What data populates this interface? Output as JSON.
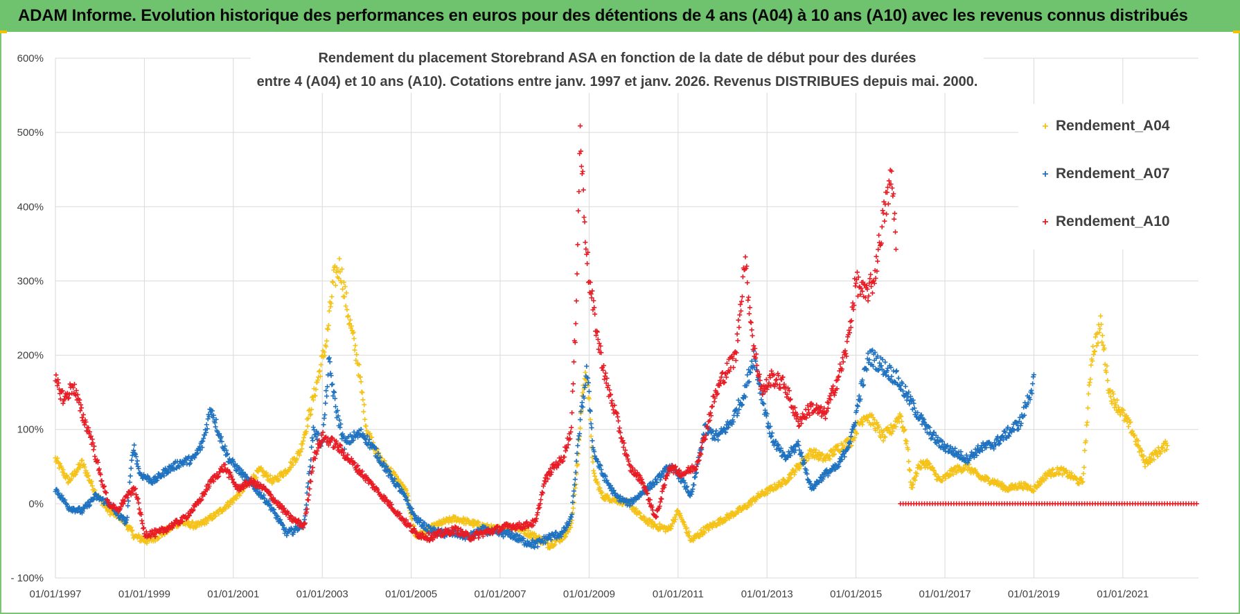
{
  "banner": {
    "text": "ADAM Informe. Evolution historique des performances en euros pour des détentions de 4 ans (A04) à 10 ans (A10) avec les revenus connus distribués"
  },
  "chart_data": {
    "type": "scatter",
    "title_lines": [
      "Rendement du placement Storebrand ASA en fonction de la date de début pour des durées",
      "entre 4 (A04) et 10 ans (A10). Cotations entre janv. 1997 et janv. 2026. Revenus DISTRIBUES depuis mai. 2000."
    ],
    "xlim": [
      1997.0,
      2022.0
    ],
    "ylim": [
      -100,
      600
    ],
    "y_ticks": [
      -100,
      0,
      100,
      200,
      300,
      400,
      500,
      600
    ],
    "y_tick_labels": [
      "- 100%",
      "0%",
      "100%",
      "200%",
      "300%",
      "400%",
      "500%",
      "600%"
    ],
    "x_ticks": [
      1997,
      1999,
      2001,
      2003,
      2005,
      2007,
      2009,
      2011,
      2013,
      2015,
      2017,
      2019,
      2021
    ],
    "x_tick_labels": [
      "01/01/1997",
      "01/01/1999",
      "01/01/2001",
      "01/01/2003",
      "01/01/2005",
      "01/01/2007",
      "01/01/2009",
      "01/01/2011",
      "01/01/2013",
      "01/01/2015",
      "01/01/2017",
      "01/01/2019",
      "01/01/2021"
    ],
    "grid": true,
    "legend_position": "top-right",
    "series": [
      {
        "name": "Rendement_A04",
        "color": "#f5c218",
        "x": [
          1997.0,
          1997.3,
          1997.6,
          1997.9,
          1998.2,
          1998.5,
          1998.8,
          1999.1,
          1999.4,
          1999.8,
          2000.2,
          2000.6,
          2001.0,
          2001.3,
          2001.6,
          2001.9,
          2002.2,
          2002.5,
          2002.75,
          2002.95,
          2003.1,
          2003.25,
          2003.4,
          2003.6,
          2003.8,
          2004.0,
          2004.3,
          2004.6,
          2004.9,
          2005.1,
          2005.4,
          2005.7,
          2006.0,
          2006.3,
          2006.6,
          2006.9,
          2007.2,
          2007.5,
          2007.8,
          2008.1,
          2008.4,
          2008.6,
          2008.75,
          2008.85,
          2008.95,
          2009.1,
          2009.3,
          2009.6,
          2009.9,
          2010.2,
          2010.5,
          2010.8,
          2011.0,
          2011.3,
          2011.6,
          2011.9,
          2012.2,
          2012.5,
          2012.8,
          2013.1,
          2013.4,
          2013.7,
          2014.0,
          2014.3,
          2014.6,
          2014.9,
          2015.0,
          2015.2,
          2015.4,
          2015.6,
          2015.8,
          2016.0,
          2016.15,
          2016.25,
          2016.4,
          2016.6,
          2016.9,
          2017.2,
          2017.5,
          2017.8,
          2018.1,
          2018.4,
          2018.7,
          2019.0,
          2019.3,
          2019.6,
          2019.9,
          2020.0,
          2020.1,
          2020.3,
          2020.5,
          2020.7,
          2020.9,
          2021.2,
          2021.5,
          2021.8,
          2022.0
        ],
        "y": [
          60,
          30,
          55,
          15,
          -10,
          -20,
          -45,
          -50,
          -40,
          -25,
          -30,
          -15,
          5,
          25,
          45,
          30,
          45,
          70,
          130,
          180,
          220,
          300,
          320,
          250,
          190,
          100,
          60,
          40,
          15,
          -45,
          -35,
          -25,
          -20,
          -25,
          -30,
          -35,
          -30,
          -35,
          -45,
          -55,
          -45,
          -30,
          60,
          150,
          180,
          40,
          10,
          5,
          0,
          -20,
          -30,
          -35,
          -10,
          -50,
          -35,
          -25,
          -15,
          -5,
          10,
          20,
          30,
          50,
          70,
          60,
          75,
          85,
          100,
          120,
          110,
          90,
          100,
          120,
          80,
          20,
          50,
          55,
          30,
          45,
          50,
          35,
          30,
          20,
          25,
          20,
          40,
          45,
          35,
          30,
          30,
          200,
          240,
          150,
          130,
          100,
          55,
          70,
          80
        ]
      },
      {
        "name": "Rendement_A07",
        "color": "#1f72c0",
        "x": [
          1997.0,
          1997.3,
          1997.6,
          1997.9,
          1998.2,
          1998.4,
          1998.6,
          1998.75,
          1998.9,
          1999.2,
          1999.5,
          1999.8,
          2000.1,
          2000.3,
          2000.5,
          2000.7,
          2000.9,
          2001.2,
          2001.5,
          2001.8,
          2002.0,
          2002.2,
          2002.4,
          2002.6,
          2002.8,
          2003.0,
          2003.15,
          2003.3,
          2003.5,
          2003.7,
          2003.9,
          2004.2,
          2004.5,
          2004.8,
          2005.1,
          2005.4,
          2005.7,
          2006.0,
          2006.3,
          2006.6,
          2006.9,
          2007.2,
          2007.5,
          2007.8,
          2008.1,
          2008.4,
          2008.6,
          2008.8,
          2008.95,
          2009.1,
          2009.3,
          2009.6,
          2009.9,
          2010.2,
          2010.5,
          2010.8,
          2011.0,
          2011.3,
          2011.6,
          2011.9,
          2012.2,
          2012.5,
          2012.7,
          2012.9,
          2013.1,
          2013.4,
          2013.7,
          2014.0,
          2014.3,
          2014.6,
          2014.9,
          2015.1,
          2015.3,
          2015.5,
          2015.7,
          2015.9,
          2016.1,
          2016.3,
          2016.6,
          2016.9,
          2017.2,
          2017.5,
          2017.8,
          2018.1,
          2018.4,
          2018.7,
          2019.0
        ],
        "y": [
          20,
          -5,
          -10,
          10,
          0,
          -15,
          -25,
          80,
          40,
          30,
          45,
          55,
          60,
          80,
          130,
          90,
          60,
          40,
          20,
          0,
          -20,
          -40,
          -35,
          -25,
          100,
          80,
          190,
          130,
          80,
          90,
          95,
          70,
          40,
          15,
          -20,
          -35,
          -40,
          -40,
          -45,
          -35,
          -40,
          -40,
          -50,
          -55,
          -45,
          -40,
          -20,
          110,
          180,
          70,
          40,
          10,
          0,
          15,
          30,
          50,
          40,
          10,
          100,
          90,
          110,
          150,
          200,
          140,
          90,
          60,
          80,
          20,
          40,
          50,
          90,
          150,
          200,
          190,
          180,
          170,
          150,
          130,
          100,
          80,
          70,
          60,
          75,
          80,
          95,
          110,
          165
        ]
      },
      {
        "name": "Rendement_A10",
        "color": "#e81c24",
        "x": [
          1997.0,
          1997.2,
          1997.4,
          1997.6,
          1997.8,
          1998.0,
          1998.2,
          1998.4,
          1998.6,
          1998.8,
          1999.0,
          1999.3,
          1999.6,
          1999.9,
          2000.2,
          2000.5,
          2000.8,
          2001.1,
          2001.4,
          2001.7,
          2002.0,
          2002.3,
          2002.6,
          2002.8,
          2003.0,
          2003.3,
          2003.6,
          2003.9,
          2004.2,
          2004.5,
          2004.8,
          2005.1,
          2005.4,
          2005.7,
          2006.0,
          2006.3,
          2006.6,
          2006.9,
          2007.2,
          2007.5,
          2007.8,
          2008.0,
          2008.2,
          2008.4,
          2008.6,
          2008.7,
          2008.8,
          2008.9,
          2009.0,
          2009.2,
          2009.4,
          2009.6,
          2009.9,
          2010.2,
          2010.5,
          2010.8,
          2011.1,
          2011.4,
          2011.6,
          2011.8,
          2012.0,
          2012.3,
          2012.5,
          2012.7,
          2012.9,
          2013.1,
          2013.4,
          2013.7,
          2014.0,
          2014.3,
          2014.6,
          2014.8,
          2015.0,
          2015.2,
          2015.4,
          2015.6,
          2015.8,
          2015.9
        ],
        "y": [
          165,
          140,
          160,
          120,
          90,
          40,
          0,
          -10,
          10,
          20,
          -40,
          -40,
          -30,
          -20,
          0,
          30,
          50,
          20,
          30,
          20,
          0,
          -20,
          -30,
          60,
          90,
          80,
          60,
          40,
          20,
          0,
          -20,
          -40,
          -45,
          -40,
          -35,
          -45,
          -40,
          -35,
          -30,
          -30,
          -25,
          30,
          50,
          60,
          100,
          250,
          500,
          380,
          300,
          220,
          160,
          120,
          50,
          30,
          -20,
          50,
          40,
          50,
          90,
          140,
          170,
          200,
          330,
          210,
          150,
          170,
          160,
          110,
          130,
          120,
          170,
          210,
          300,
          280,
          300,
          380,
          440,
          360
        ]
      }
    ],
    "flat_series_note": "Rendement_A10 is 0% from 2016.0 to 2022.0"
  }
}
